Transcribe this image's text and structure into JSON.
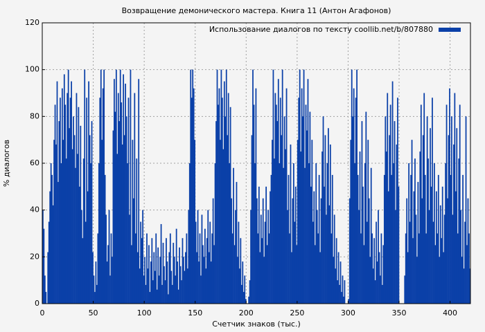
{
  "chart_data": {
    "type": "bar",
    "title": "Возвращение демонического мастера. Книга 11 (Антон Агафонов)",
    "xlabel": "Счетчик знаков (тыс.)",
    "ylabel": "% диалогов",
    "legend_loc": "upper right",
    "series": [
      {
        "name": "Использование диалогов по тексту coollib.net/b/807880",
        "color": "#0b40a8",
        "values": [
          40,
          32,
          12,
          5,
          0,
          22,
          35,
          48,
          60,
          55,
          42,
          70,
          85,
          68,
          95,
          52,
          78,
          88,
          60,
          92,
          70,
          98,
          85,
          62,
          90,
          100,
          75,
          88,
          95,
          66,
          80,
          72,
          58,
          90,
          64,
          84,
          50,
          76,
          40,
          28,
          62,
          100,
          35,
          88,
          48,
          95,
          72,
          60,
          78,
          22,
          12,
          5,
          18,
          8,
          30,
          60,
          88,
          100,
          70,
          92,
          100,
          55,
          38,
          18,
          25,
          40,
          12,
          30,
          20,
          74,
          96,
          82,
          100,
          64,
          90,
          78,
          100,
          86,
          68,
          98,
          72,
          94,
          80,
          60,
          88,
          38,
          100,
          25,
          70,
          45,
          90,
          30,
          62,
          22,
          96,
          15,
          35,
          28,
          40,
          12,
          20,
          8,
          30,
          15,
          25,
          5,
          18,
          28,
          10,
          22,
          14,
          30,
          6,
          24,
          12,
          20,
          34,
          8,
          26,
          16,
          10,
          28,
          18,
          4,
          22,
          30,
          14,
          8,
          26,
          20,
          12,
          32,
          18,
          6,
          24,
          16,
          10,
          28,
          20,
          14,
          22,
          30,
          15,
          40,
          60,
          100,
          88,
          100,
          92,
          70,
          35,
          22,
          40,
          18,
          30,
          12,
          38,
          25,
          20,
          32,
          15,
          28,
          40,
          22,
          35,
          18,
          30,
          45,
          25,
          60,
          78,
          100,
          85,
          92,
          70,
          100,
          88,
          66,
          95,
          80,
          100,
          72,
          90,
          60,
          84,
          45,
          30,
          58,
          25,
          40,
          52,
          20,
          35,
          15,
          28,
          8,
          18,
          5,
          12,
          2,
          0,
          0,
          3,
          10,
          40,
          72,
          100,
          85,
          60,
          92,
          45,
          30,
          50,
          22,
          38,
          28,
          45,
          20,
          35,
          50,
          25,
          40,
          30,
          48,
          55,
          70,
          100,
          62,
          90,
          85,
          78,
          96,
          60,
          88,
          72,
          100,
          58,
          80,
          66,
          92,
          40,
          55,
          30,
          68,
          22,
          45,
          60,
          35,
          50,
          25,
          70,
          88,
          100,
          65,
          92,
          80,
          100,
          58,
          85,
          74,
          96,
          60,
          82,
          50,
          70,
          35,
          48,
          25,
          60,
          40,
          30,
          55,
          22,
          45,
          65,
          80,
          50,
          72,
          38,
          60,
          75,
          42,
          68,
          30,
          55,
          20,
          38,
          15,
          28,
          10,
          22,
          8,
          18,
          5,
          12,
          3,
          10,
          0,
          0,
          0,
          2,
          45,
          70,
          100,
          80,
          92,
          60,
          88,
          100,
          55,
          40,
          65,
          30,
          78,
          50,
          25,
          60,
          82,
          35,
          70,
          45,
          20,
          58,
          30,
          15,
          28,
          10,
          35,
          18,
          40,
          22,
          12,
          30,
          8,
          25,
          55,
          80,
          65,
          90,
          48,
          72,
          85,
          55,
          95,
          60,
          78,
          40,
          68,
          88,
          50,
          0,
          0,
          0,
          0,
          0,
          12,
          30,
          45,
          22,
          60,
          35,
          55,
          70,
          28,
          48,
          62,
          38,
          20,
          52,
          30,
          65,
          85,
          45,
          72,
          90,
          55,
          30,
          80,
          62,
          40,
          75,
          50,
          88,
          35,
          60,
          25,
          48,
          30,
          55,
          20,
          42,
          28,
          50,
          22,
          38,
          60,
          85,
          45,
          72,
          92,
          55,
          80,
          38,
          68,
          90,
          48,
          75,
          30,
          62,
          85,
          40,
          20,
          55,
          15,
          35,
          80,
          25,
          45,
          30,
          15
        ]
      }
    ],
    "x": [
      0,
      1,
      2,
      3,
      4,
      5,
      6,
      7,
      8,
      9,
      10,
      11,
      12,
      13,
      14,
      15,
      16,
      17,
      18,
      19,
      20,
      21,
      22,
      23,
      24,
      25,
      26,
      27,
      28,
      29,
      30,
      31,
      32,
      33,
      34,
      35,
      36,
      37,
      38,
      39,
      40,
      41,
      42,
      43,
      44,
      45,
      46,
      47,
      48,
      49,
      50,
      51,
      52,
      53,
      54,
      55,
      56,
      57,
      58,
      59,
      60,
      61,
      62,
      63,
      64,
      65,
      66,
      67,
      68,
      69,
      70,
      71,
      72,
      73,
      74,
      75,
      76,
      77,
      78,
      79,
      80,
      81,
      82,
      83,
      84,
      85,
      86,
      87,
      88,
      89,
      90,
      91,
      92,
      93,
      94,
      95,
      96,
      97,
      98,
      99,
      100,
      101,
      102,
      103,
      104,
      105,
      106,
      107,
      108,
      109,
      110,
      111,
      112,
      113,
      114,
      115,
      116,
      117,
      118,
      119,
      120,
      121,
      122,
      123,
      124,
      125,
      126,
      127,
      128,
      129,
      130,
      131,
      132,
      133,
      134,
      135,
      136,
      137,
      138,
      139,
      140,
      141,
      142,
      143,
      144,
      145,
      146,
      147,
      148,
      149,
      150,
      151,
      152,
      153,
      154,
      155,
      156,
      157,
      158,
      159,
      160,
      161,
      162,
      163,
      164,
      165,
      166,
      167,
      168,
      169,
      170,
      171,
      172,
      173,
      174,
      175,
      176,
      177,
      178,
      179,
      180,
      181,
      182,
      183,
      184,
      185,
      186,
      187,
      188,
      189,
      190,
      191,
      192,
      193,
      194,
      195,
      196,
      197,
      198,
      199,
      200,
      201,
      202,
      203,
      204,
      205,
      206,
      207,
      208,
      209,
      210,
      211,
      212,
      213,
      214,
      215,
      216,
      217,
      218,
      219,
      220,
      221,
      222,
      223,
      224,
      225,
      226,
      227,
      228,
      229,
      230,
      231,
      232,
      233,
      234,
      235,
      236,
      237,
      238,
      239,
      240,
      241,
      242,
      243,
      244,
      245,
      246,
      247,
      248,
      249,
      250,
      251,
      252,
      253,
      254,
      255,
      256,
      257,
      258,
      259,
      260,
      261,
      262,
      263,
      264,
      265,
      266,
      267,
      268,
      269,
      270,
      271,
      272,
      273,
      274,
      275,
      276,
      277,
      278,
      279,
      280,
      281,
      282,
      283,
      284,
      285,
      286,
      287,
      288,
      289,
      290,
      291,
      292,
      293,
      294,
      295,
      296,
      297,
      298,
      299,
      300,
      301,
      302,
      303,
      304,
      305,
      306,
      307,
      308,
      309,
      310,
      311,
      312,
      313,
      314,
      315,
      316,
      317,
      318,
      319,
      320,
      321,
      322,
      323,
      324,
      325,
      326,
      327,
      328,
      329,
      330,
      331,
      332,
      333,
      334,
      335,
      336,
      337,
      338,
      339,
      340,
      341,
      342,
      343,
      344,
      345,
      346,
      347,
      348,
      349,
      350,
      351,
      352,
      353,
      354,
      355,
      356,
      357,
      358,
      359,
      360,
      361,
      362,
      363,
      364,
      365,
      366,
      367,
      368,
      369,
      370,
      371,
      372,
      373,
      374,
      375,
      376,
      377,
      378,
      379,
      380,
      381,
      382,
      383,
      384,
      385,
      386,
      387,
      388,
      389,
      390,
      391,
      392,
      393,
      394,
      395,
      396,
      397,
      398,
      399,
      400,
      401,
      402,
      403,
      404,
      405,
      406,
      407,
      408,
      409,
      410,
      411,
      412,
      413,
      414,
      415,
      416,
      417,
      418,
      419
    ],
    "xlim": [
      0,
      420
    ],
    "xticks": [
      0,
      50,
      100,
      150,
      200,
      250,
      300,
      350,
      400
    ],
    "ylim": [
      0,
      120
    ],
    "yticks": [
      0,
      20,
      40,
      60,
      80,
      100,
      120
    ],
    "grid": true
  }
}
